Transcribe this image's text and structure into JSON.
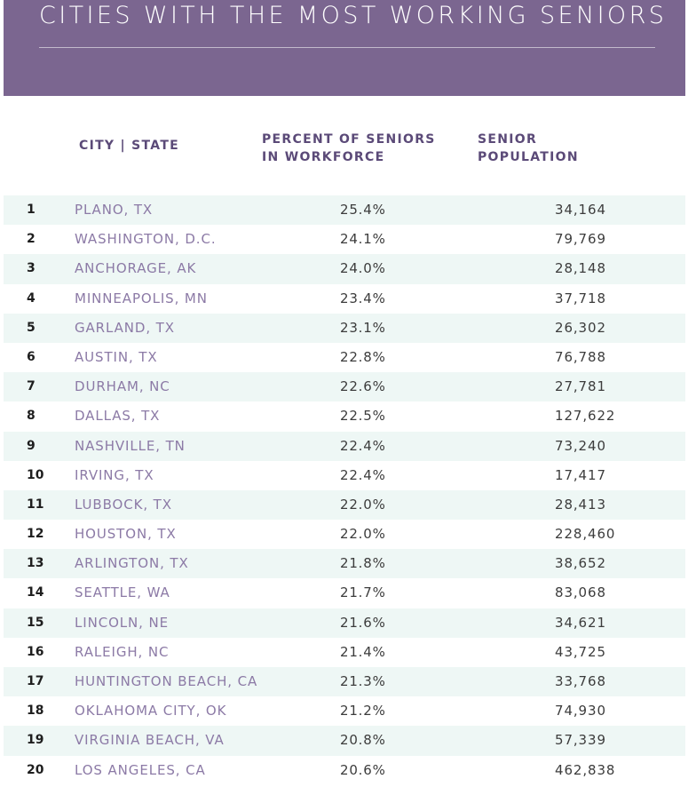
{
  "title": "CITIES WITH THE MOST WORKING SENIORS",
  "headers": {
    "city": "CITY | STATE",
    "percent_line1": "PERCENT OF SENIORS",
    "percent_line2": "IN WORKFORCE",
    "population_line1": "SENIOR",
    "population_line2": "POPULATION"
  },
  "colors": {
    "banner": "#7b6690",
    "header_text": "#5b4a78",
    "city_text": "#8c7aa6",
    "stripe": "#eef7f5"
  },
  "rows": [
    {
      "rank": "1",
      "city": "PLANO, TX",
      "percent": "25.4%",
      "population": "34,164"
    },
    {
      "rank": "2",
      "city": "WASHINGTON, D.C.",
      "percent": "24.1%",
      "population": "79,769"
    },
    {
      "rank": "3",
      "city": "ANCHORAGE, AK",
      "percent": "24.0%",
      "population": "28,148"
    },
    {
      "rank": "4",
      "city": "MINNEAPOLIS, MN",
      "percent": "23.4%",
      "population": "37,718"
    },
    {
      "rank": "5",
      "city": "GARLAND, TX",
      "percent": "23.1%",
      "population": "26,302"
    },
    {
      "rank": "6",
      "city": "AUSTIN, TX",
      "percent": "22.8%",
      "population": "76,788"
    },
    {
      "rank": "7",
      "city": "DURHAM, NC",
      "percent": "22.6%",
      "population": "27,781"
    },
    {
      "rank": "8",
      "city": "DALLAS, TX",
      "percent": "22.5%",
      "population": "127,622"
    },
    {
      "rank": "9",
      "city": "NASHVILLE, TN",
      "percent": "22.4%",
      "population": "73,240"
    },
    {
      "rank": "10",
      "city": "IRVING, TX",
      "percent": "22.4%",
      "population": "17,417"
    },
    {
      "rank": "11",
      "city": "LUBBOCK, TX",
      "percent": "22.0%",
      "population": "28,413"
    },
    {
      "rank": "12",
      "city": "HOUSTON, TX",
      "percent": "22.0%",
      "population": "228,460"
    },
    {
      "rank": "13",
      "city": "ARLINGTON, TX",
      "percent": "21.8%",
      "population": "38,652"
    },
    {
      "rank": "14",
      "city": "SEATTLE, WA",
      "percent": "21.7%",
      "population": "83,068"
    },
    {
      "rank": "15",
      "city": "LINCOLN, NE",
      "percent": "21.6%",
      "population": "34,621"
    },
    {
      "rank": "16",
      "city": "RALEIGH, NC",
      "percent": "21.4%",
      "population": "43,725"
    },
    {
      "rank": "17",
      "city": "HUNTINGTON BEACH, CA",
      "percent": "21.3%",
      "population": "33,768"
    },
    {
      "rank": "18",
      "city": "OKLAHOMA CITY, OK",
      "percent": "21.2%",
      "population": "74,930"
    },
    {
      "rank": "19",
      "city": "VIRGINIA BEACH, VA",
      "percent": "20.8%",
      "population": "57,339"
    },
    {
      "rank": "20",
      "city": "LOS ANGELES, CA",
      "percent": "20.6%",
      "population": "462,838"
    }
  ]
}
